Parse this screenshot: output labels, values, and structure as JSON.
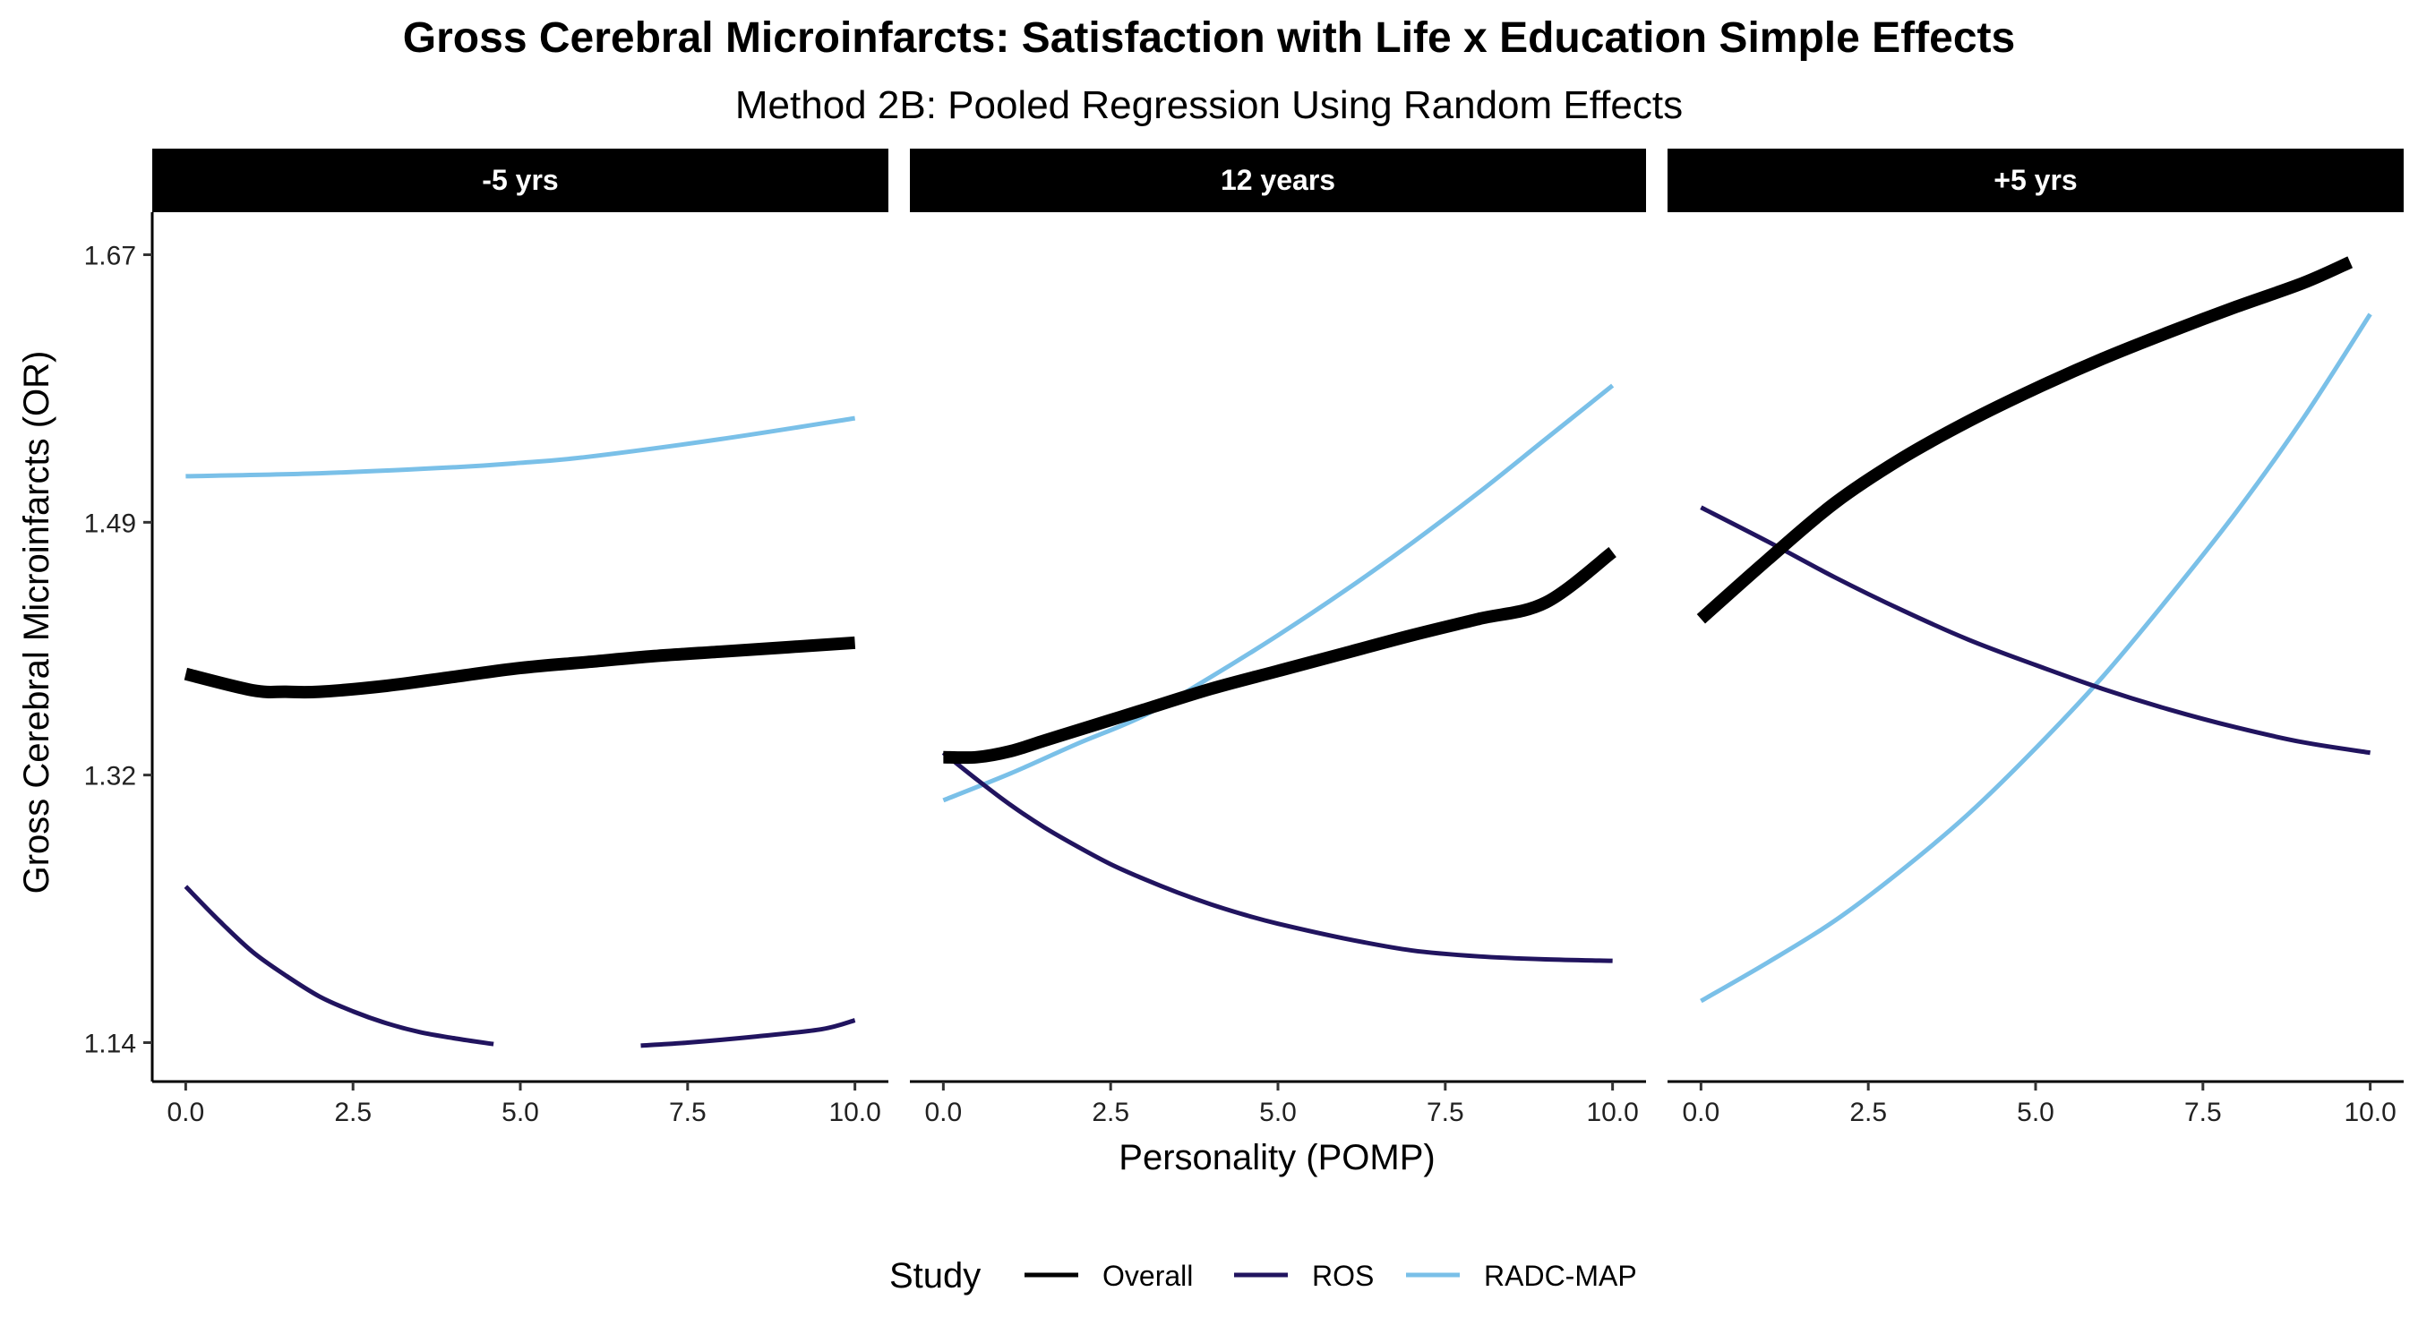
{
  "chart_data": {
    "type": "line",
    "title": "Gross Cerebral Microinfarcts: Satisfaction with Life x Education Simple Effects",
    "subtitle": "Method 2B: Pooled Regression Using Random Effects",
    "xlabel": "Personality (POMP)",
    "ylabel": "Gross Cerebral Microinfarcts (OR)",
    "xlim": [
      -0.5,
      10.5
    ],
    "ylim": [
      1.1138,
      1.6986
    ],
    "x_ticks": [
      "0.0",
      "2.5",
      "5.0",
      "7.5",
      "10.0"
    ],
    "x_tick_values": [
      0,
      2.5,
      5,
      7.5,
      10
    ],
    "y_ticks": [
      "1.14",
      "1.32",
      "1.49",
      "1.67"
    ],
    "y_tick_values": [
      1.14,
      1.32,
      1.49,
      1.67
    ],
    "grid": false,
    "legend": {
      "title": "Study",
      "position": "bottom",
      "entries": [
        "Overall",
        "ROS",
        "RADC-MAP"
      ]
    },
    "colors": {
      "Overall": "#000000",
      "ROS": "#21145f",
      "RADC-MAP": "#7ac0e8"
    },
    "panels": [
      {
        "label": "-5 yrs",
        "series": [
          {
            "name": "Overall",
            "x": [
              0,
              1,
              1.5,
              2,
              3,
              4,
              5,
              6,
              7,
              8,
              9,
              10
            ],
            "y": [
              1.388,
              1.377,
              1.376,
              1.376,
              1.38,
              1.386,
              1.392,
              1.396,
              1.4,
              1.403,
              1.406,
              1.409
            ]
          },
          {
            "name": "ROS",
            "x": [
              0,
              0.5,
              1,
              1.5,
              2,
              2.5,
              3,
              3.5,
              4,
              4.6
            ],
            "y": [
              1.245,
              1.222,
              1.201,
              1.185,
              1.171,
              1.161,
              1.153,
              1.147,
              1.143,
              1.139
            ]
          },
          {
            "name": "ROS",
            "x": [
              6.8,
              7.5,
              8.5,
              9.5,
              10
            ],
            "y": [
              1.138,
              1.14,
              1.144,
              1.149,
              1.155
            ]
          },
          {
            "name": "RADC-MAP",
            "x": [
              0,
              2,
              4,
              5,
              6,
              8,
              10
            ],
            "y": [
              1.521,
              1.523,
              1.527,
              1.53,
              1.534,
              1.546,
              1.56
            ]
          }
        ]
      },
      {
        "label": "12 years",
        "series": [
          {
            "name": "Overall",
            "x": [
              0,
              0.5,
              1,
              1.5,
              2,
              2.5,
              3,
              4,
              5,
              6,
              7,
              8,
              9,
              10
            ],
            "y": [
              1.332,
              1.332,
              1.336,
              1.343,
              1.35,
              1.357,
              1.364,
              1.378,
              1.39,
              1.402,
              1.414,
              1.425,
              1.436,
              1.47
            ]
          },
          {
            "name": "ROS",
            "x": [
              0,
              0.5,
              1,
              1.5,
              2,
              2.5,
              3,
              3.5,
              4,
              4.5,
              5,
              6,
              7,
              8,
              9,
              10
            ],
            "y": [
              1.335,
              1.317,
              1.3,
              1.285,
              1.272,
              1.26,
              1.25,
              1.241,
              1.233,
              1.226,
              1.22,
              1.21,
              1.202,
              1.198,
              1.196,
              1.195
            ]
          },
          {
            "name": "RADC-MAP",
            "x": [
              0,
              1,
              2,
              3,
              4,
              5,
              6,
              7,
              8,
              9,
              10
            ],
            "y": [
              1.303,
              1.321,
              1.341,
              1.36,
              1.386,
              1.414,
              1.444,
              1.476,
              1.51,
              1.546,
              1.582
            ]
          }
        ]
      },
      {
        "label": "+5 yrs",
        "series": [
          {
            "name": "Overall",
            "x": [
              0,
              1,
              2,
              3,
              4,
              5,
              6,
              7,
              8,
              9,
              9.7
            ],
            "y": [
              1.425,
              1.465,
              1.503,
              1.533,
              1.558,
              1.58,
              1.6,
              1.618,
              1.635,
              1.651,
              1.665
            ]
          },
          {
            "name": "ROS",
            "x": [
              0,
              1,
              2,
              3,
              4,
              5,
              6,
              7,
              8,
              9,
              10
            ],
            "y": [
              1.5,
              1.477,
              1.453,
              1.431,
              1.411,
              1.394,
              1.378,
              1.364,
              1.352,
              1.342,
              1.335
            ]
          },
          {
            "name": "RADC-MAP",
            "x": [
              0,
              1,
              2,
              3,
              4,
              5,
              6,
              7,
              8,
              9,
              10
            ],
            "y": [
              1.168,
              1.194,
              1.222,
              1.256,
              1.294,
              1.338,
              1.386,
              1.44,
              1.497,
              1.56,
              1.63
            ]
          }
        ]
      }
    ]
  }
}
